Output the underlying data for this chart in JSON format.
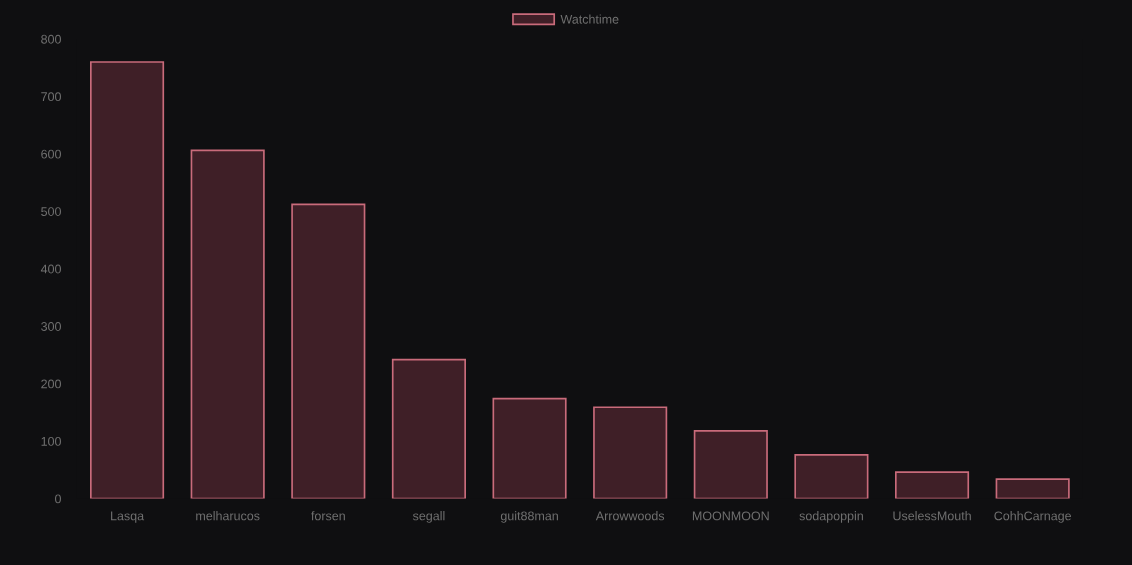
{
  "chart_data": {
    "type": "bar",
    "categories": [
      "Lasqa",
      "melharucos",
      "forsen",
      "segall",
      "guit88man",
      "Arrowwoods",
      "MOONMOON",
      "sodapoppin",
      "UselessMouth",
      "CohhCarnage"
    ],
    "series": [
      {
        "name": "Watchtime",
        "color": "#3f1f27",
        "values": [
          760,
          606,
          512,
          242,
          174,
          159,
          118,
          76,
          46,
          34
        ]
      }
    ],
    "ylim": [
      0,
      800
    ],
    "yticks": [
      0,
      100,
      200,
      300,
      400,
      500,
      600,
      700,
      800
    ],
    "legend": "top",
    "grid": false
  }
}
